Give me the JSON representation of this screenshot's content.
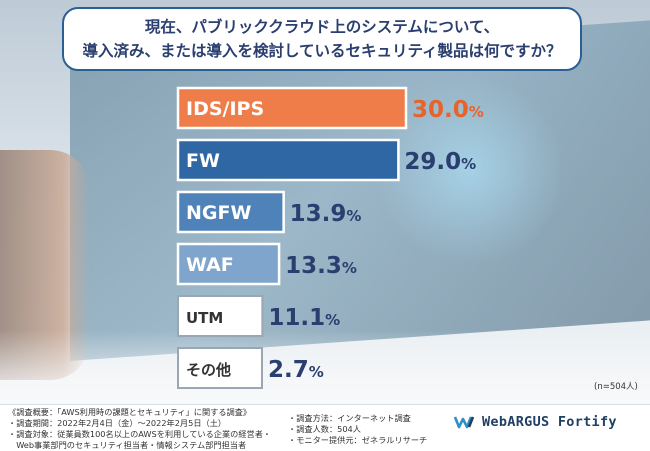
{
  "title": {
    "line1": "現在、パブリッククラウド上のシステムについて、",
    "line2": "導入済み、または導入を検討しているセキュリティ製品は何ですか？"
  },
  "sample_note": "(n=504人)",
  "notes_left": [
    "《調査概要：「AWS利用時の課題とセキュリティ」に関する調査》",
    "・調査期間：2022年2月4日（金）～2022年2月5日（土）",
    "・調査対象：従業員数100名以上のAWSを利用している企業の経営者・",
    "　Web事業部門のセキュリティ担当者・情報システム部門担当者"
  ],
  "notes_right": [
    "・調査方法：インターネット調査",
    "・調査人数：504人",
    "・モニター提供元：ゼネラルリサーチ"
  ],
  "logo_text": "WebARGUS Fortify",
  "colors": {
    "highlight": "#ef7d4a",
    "primary": "#2e67a3",
    "mid": "#4f82b8",
    "light": "#7fa5cc",
    "neutral": "#ffffff",
    "title_text": "#2a3f6f",
    "value_text": "#2a3f6f",
    "value_highlight": "#e8622a"
  },
  "chart_data": {
    "type": "bar",
    "orientation": "horizontal",
    "categories": [
      "IDS/IPS",
      "FW",
      "NGFW",
      "WAF",
      "UTM",
      "その他"
    ],
    "values": [
      30.0,
      29.0,
      13.9,
      13.3,
      11.1,
      2.7
    ],
    "unit": "%",
    "value_labels": [
      "30.0",
      "29.0",
      "13.9",
      "13.3",
      "11.1",
      "2.7"
    ],
    "bar_styles": [
      "highlight",
      "primary",
      "mid",
      "light",
      "neutral",
      "neutral"
    ],
    "xlim": [
      0,
      30
    ]
  }
}
